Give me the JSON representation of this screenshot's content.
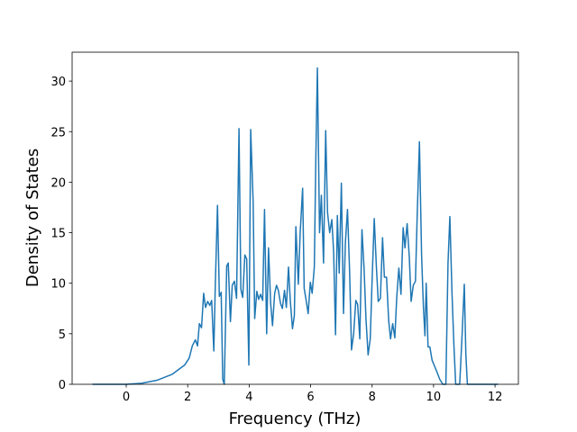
{
  "chart_data": {
    "type": "line",
    "xlabel": "Frequency (THz)",
    "ylabel": "Density of States",
    "x": [
      -1.1,
      -0.5,
      0,
      0.5,
      1.0,
      1.5,
      1.9,
      2.05,
      2.15,
      2.25,
      2.32,
      2.38,
      2.45,
      2.52,
      2.58,
      2.65,
      2.72,
      2.78,
      2.85,
      2.9,
      2.97,
      3.03,
      3.09,
      3.14,
      3.19,
      3.27,
      3.32,
      3.39,
      3.45,
      3.52,
      3.59,
      3.67,
      3.73,
      3.79,
      3.86,
      3.92,
      3.99,
      4.05,
      4.13,
      4.18,
      4.25,
      4.31,
      4.37,
      4.44,
      4.5,
      4.57,
      4.63,
      4.7,
      4.76,
      4.83,
      4.89,
      4.95,
      5.02,
      5.08,
      5.15,
      5.21,
      5.28,
      5.34,
      5.41,
      5.47,
      5.52,
      5.6,
      5.66,
      5.74,
      5.79,
      5.86,
      5.92,
      5.99,
      6.05,
      6.12,
      6.17,
      6.22,
      6.29,
      6.35,
      6.42,
      6.49,
      6.55,
      6.62,
      6.69,
      6.75,
      6.81,
      6.87,
      6.93,
      7.0,
      7.07,
      7.13,
      7.2,
      7.27,
      7.33,
      7.4,
      7.47,
      7.53,
      7.6,
      7.67,
      7.74,
      7.8,
      7.87,
      7.94,
      8.0,
      8.07,
      8.14,
      8.2,
      8.27,
      8.34,
      8.4,
      8.47,
      8.54,
      8.6,
      8.67,
      8.74,
      8.8,
      8.87,
      8.94,
      9.01,
      9.07,
      9.14,
      9.21,
      9.27,
      9.34,
      9.41,
      9.47,
      9.54,
      9.61,
      9.67,
      9.72,
      9.76,
      9.82,
      9.88,
      9.95,
      10.1,
      10.2,
      10.3,
      10.4,
      10.47,
      10.53,
      10.6,
      10.66,
      10.72,
      10.85,
      10.93,
      11.0,
      11.05,
      11.1,
      11.2,
      12.1
    ],
    "values": [
      0,
      0,
      0,
      0.1,
      0.4,
      1.0,
      1.9,
      2.6,
      3.8,
      4.4,
      3.8,
      6.0,
      5.6,
      9.0,
      7.6,
      8.2,
      7.8,
      8.3,
      3.3,
      10,
      17.7,
      8.7,
      9.1,
      0.5,
      0,
      11.7,
      12.0,
      6.2,
      9.8,
      10.2,
      8.5,
      25.3,
      9.4,
      8.6,
      12.8,
      12.4,
      1.9,
      25.2,
      18,
      6.5,
      9.2,
      8.4,
      8.9,
      8.3,
      17.3,
      5.0,
      13.5,
      8.0,
      5.8,
      9.0,
      9.8,
      9.3,
      8.0,
      7.5,
      9.3,
      7.6,
      11.6,
      8.2,
      5.5,
      6.8,
      15.6,
      9.9,
      15.0,
      19.4,
      9.5,
      8.2,
      7.0,
      10.1,
      9.0,
      11.6,
      22.5,
      31.3,
      15,
      18.7,
      12.0,
      25.1,
      17,
      15,
      16.3,
      13,
      4.9,
      16.7,
      11.0,
      19.9,
      7.0,
      14,
      17.3,
      11,
      3.4,
      5.0,
      8.3,
      7.9,
      4.5,
      15.3,
      11.4,
      6.5,
      2.9,
      4.5,
      10.3,
      16.4,
      11.6,
      8.2,
      8.5,
      14.5,
      10.6,
      10.6,
      6.3,
      4.5,
      6.0,
      4.6,
      8.5,
      11.5,
      8.9,
      15.5,
      13.5,
      15.9,
      12.6,
      8.2,
      9.8,
      10.2,
      17,
      24.0,
      12.8,
      7.6,
      4.8,
      10.0,
      3.7,
      3.7,
      2.4,
      1.3,
      0.5,
      0,
      0,
      12,
      16.6,
      9,
      4,
      0,
      0,
      5,
      9.9,
      3,
      0,
      0,
      0
    ],
    "color": "#1f77b4",
    "xlim": [
      -1.76,
      12.76
    ],
    "ylim": [
      0,
      32.86
    ],
    "xticks": [
      0,
      2,
      4,
      6,
      8,
      10,
      12
    ],
    "yticks": [
      0,
      5,
      10,
      15,
      20,
      25,
      30
    ]
  }
}
